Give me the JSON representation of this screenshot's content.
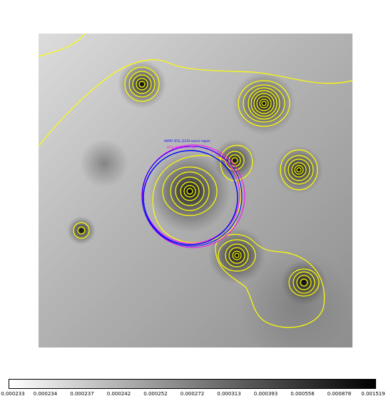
{
  "colors": {
    "contour": "#ffff00",
    "region_blue": "#0000ff",
    "region_magenta": "#ff00ff",
    "background_light": "#d8d8d8",
    "background_dark": "#5a5a5a"
  },
  "image": {
    "region_labels": {
      "blue": "AKARI 3FGL J1234 source region",
      "magenta": "4FGL J1234.5+6789"
    }
  },
  "colorbar": {
    "scale": "log",
    "tick_labels": [
      "0.000233",
      "0.000234",
      "0.000237",
      "0.000242",
      "0.000252",
      "0.000272",
      "0.000313",
      "0.000393",
      "0.000556",
      "0.000878",
      "0.001519"
    ]
  }
}
